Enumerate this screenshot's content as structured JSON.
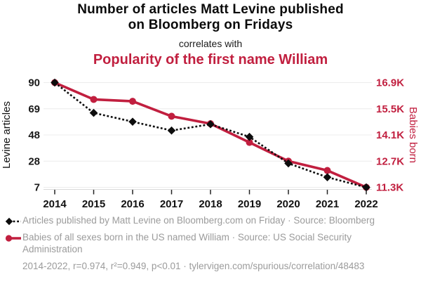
{
  "header": {
    "title_line1": "Number of articles Matt Levine published",
    "title_line2": "on Bloomberg on Fridays",
    "connector": "correlates with",
    "subtitle": "Popularity of the first name William"
  },
  "colors": {
    "red": "#c11f3f",
    "black": "#0d0d0d",
    "grid": "#ececec",
    "axis_line": "#d9d9d9",
    "legend_gray": "#9b9b9b"
  },
  "chart_data": {
    "type": "line",
    "x": [
      2014,
      2015,
      2016,
      2017,
      2018,
      2019,
      2020,
      2021,
      2022
    ],
    "x_ticks": [
      "2014",
      "2015",
      "2016",
      "2017",
      "2018",
      "2019",
      "2020",
      "2021",
      "2022"
    ],
    "series": [
      {
        "name": "Articles published by Matt Levine on Bloomberg.com on Friday",
        "short_name": "Levine articles",
        "axis": "left",
        "style": "dashed-diamond",
        "color": "#0d0d0d",
        "values": [
          90,
          66,
          59,
          52,
          57,
          47,
          26,
          15,
          7
        ]
      },
      {
        "name": "Babies of all sexes born in the US named William",
        "short_name": "Babies born",
        "axis": "right",
        "style": "solid-circle",
        "color": "#c11f3f",
        "values": [
          16900,
          16000,
          15900,
          15100,
          14700,
          13700,
          12700,
          12200,
          11300
        ]
      }
    ],
    "left_axis": {
      "label": "Levine articles",
      "ticks": [
        "90",
        "69",
        "48",
        "28",
        "7"
      ],
      "range": [
        7,
        90
      ]
    },
    "right_axis": {
      "label": "Babies born",
      "ticks": [
        "16.9K",
        "15.5K",
        "14.1K",
        "12.7K",
        "11.3K"
      ],
      "range": [
        11300,
        16900
      ]
    },
    "grid": "horizontal",
    "legend_position": "below"
  },
  "legend": {
    "items": [
      {
        "marker": "black-diamond-dashed-line",
        "label": "Articles published by Matt Levine on Bloomberg.com on Friday · Source: Bloomberg"
      },
      {
        "marker": "red-circle-solid-line",
        "label": "Babies of all sexes born in the US named William · Source: US Social Security Administration"
      }
    ],
    "footnote": "2014-2022, r=0.974, r²=0.949, p<0.01 · tylervigen.com/spurious/correlation/48483"
  }
}
